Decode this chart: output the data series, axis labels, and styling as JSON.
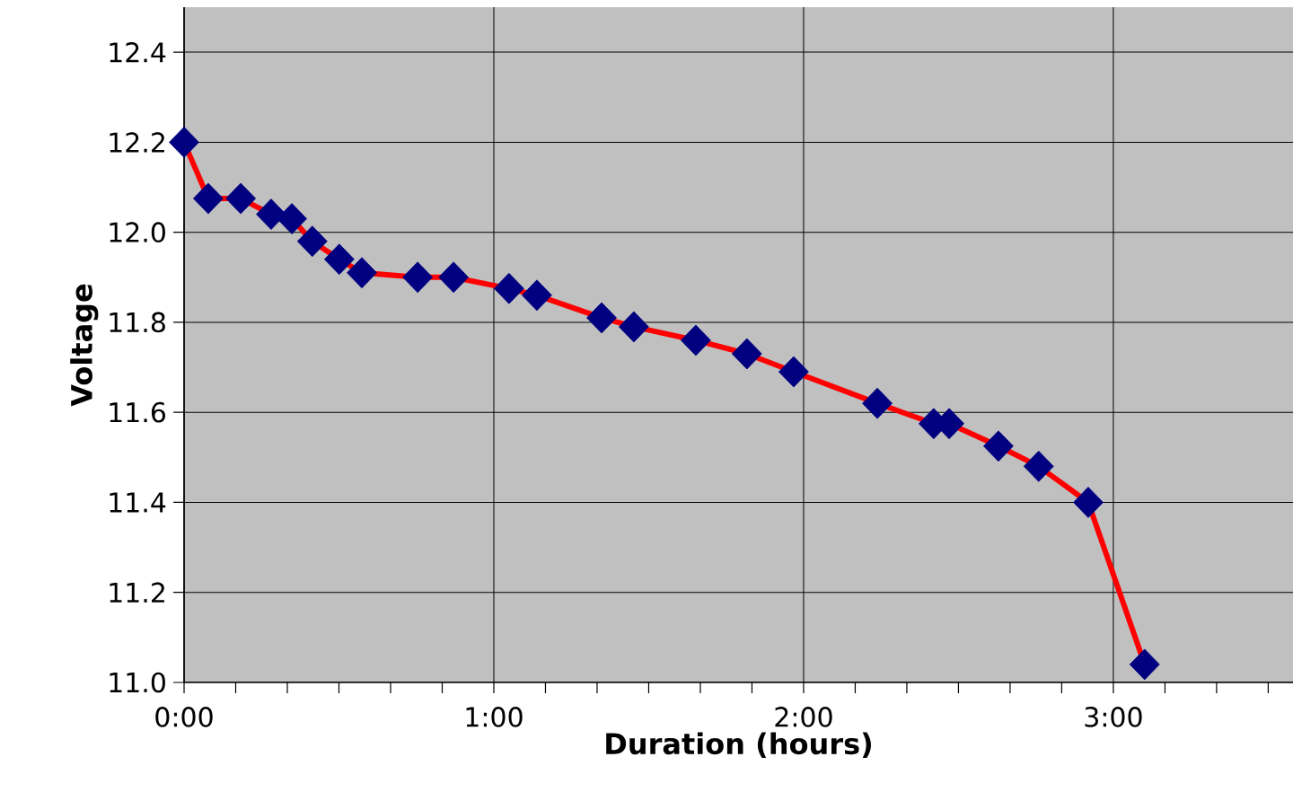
{
  "chart_data": {
    "type": "line",
    "xlabel": "Duration (hours)",
    "ylabel": "Voltage",
    "x": [
      0,
      0.078,
      0.183,
      0.281,
      0.348,
      0.414,
      0.501,
      0.574,
      0.754,
      0.87,
      1.049,
      1.139,
      1.348,
      1.452,
      1.652,
      1.817,
      1.968,
      2.238,
      2.42,
      2.47,
      2.629,
      2.759,
      2.919,
      3.101
    ],
    "series": [
      {
        "color": "#ff0000",
        "colors": [
          "#000080",
          "#000080",
          "#000080",
          "#000080",
          "#000080",
          "#000080",
          "#000080",
          "#000080",
          "#000080",
          "#000080",
          "#000080",
          "#000080",
          "#000080",
          "#000080",
          "#000080",
          "#000080",
          "#000080",
          "#000080",
          "#000080",
          "#000080",
          "#000080",
          "#000080",
          "#000080",
          "#000080"
        ],
        "values": [
          12.2,
          12.075,
          12.075,
          12.04,
          12.03,
          11.98,
          11.94,
          11.91,
          11.9,
          11.9,
          11.875,
          11.86,
          11.81,
          11.79,
          11.76,
          11.73,
          11.69,
          11.62,
          11.575,
          11.575,
          11.525,
          11.48,
          11.4,
          11.04
        ]
      }
    ],
    "xlim": [
      0,
      3.58
    ],
    "ylim": [
      11.0,
      12.5
    ],
    "xticks": [
      {
        "value": 0,
        "label": "0:00"
      },
      {
        "value": 0.16667,
        "label": null
      },
      {
        "value": 0.33333,
        "label": null
      },
      {
        "value": 0.5,
        "label": null
      },
      {
        "value": 0.66667,
        "label": null
      },
      {
        "value": 0.83333,
        "label": null
      },
      {
        "value": 1,
        "label": "1:00"
      },
      {
        "value": 1.16667,
        "label": null
      },
      {
        "value": 1.33333,
        "label": null
      },
      {
        "value": 1.5,
        "label": null
      },
      {
        "value": 1.66667,
        "label": null
      },
      {
        "value": 1.83333,
        "label": null
      },
      {
        "value": 2,
        "label": "2:00"
      },
      {
        "value": 2.16667,
        "label": null
      },
      {
        "value": 2.33333,
        "label": null
      },
      {
        "value": 2.5,
        "label": null
      },
      {
        "value": 2.66667,
        "label": null
      },
      {
        "value": 2.83333,
        "label": null
      },
      {
        "value": 3,
        "label": "3:00"
      },
      {
        "value": 3.16667,
        "label": null
      },
      {
        "value": 3.33333,
        "label": null
      },
      {
        "value": 3.5,
        "label": null
      }
    ],
    "yticks": [
      {
        "value": 11.0,
        "label": "11.0"
      },
      {
        "value": 11.2,
        "label": "11.2"
      },
      {
        "value": 11.4,
        "label": "11.4"
      },
      {
        "value": 11.6,
        "label": "11.6"
      },
      {
        "value": 11.8,
        "label": "11.8"
      },
      {
        "value": 12.0,
        "label": "12.0"
      },
      {
        "value": 12.2,
        "label": "12.2"
      },
      {
        "value": 12.4,
        "label": "12.4"
      }
    ],
    "grid": true,
    "marker": "diamond",
    "line_style": "solid"
  }
}
